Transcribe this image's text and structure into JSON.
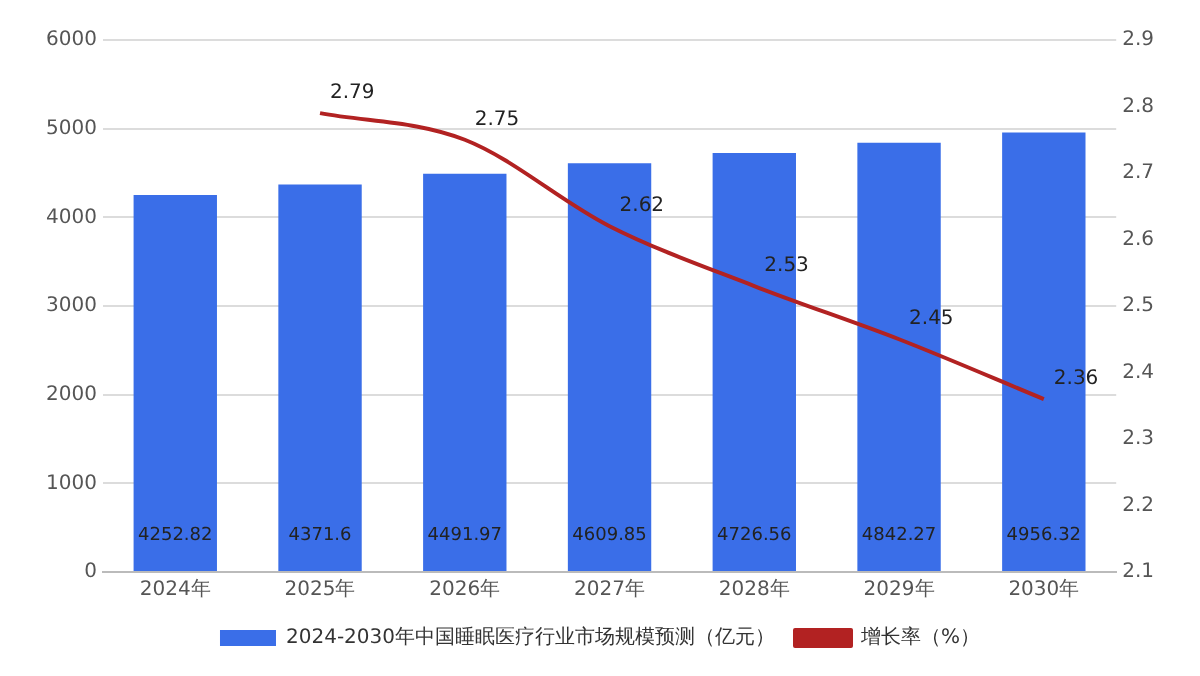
{
  "chart_data": {
    "type": "bar",
    "categories": [
      "2024年",
      "2025年",
      "2026年",
      "2027年",
      "2028年",
      "2029年",
      "2030年"
    ],
    "series": [
      {
        "name": "2024-2030年中国睡眠医疗行业市场规模预测（亿元）",
        "color": "#3a6ee8",
        "values": [
          4252.82,
          4371.6,
          4491.97,
          4609.85,
          4726.56,
          4842.27,
          4956.32
        ]
      },
      {
        "type": "line",
        "name": "增长率（%）",
        "color": "#b22222",
        "axis": "y2",
        "values": [
          null,
          2.79,
          2.75,
          2.62,
          2.53,
          2.45,
          2.36
        ]
      }
    ],
    "ylim": [
      0,
      6000
    ],
    "yticks": [
      0,
      1000,
      2000,
      3000,
      4000,
      5000,
      6000
    ],
    "y2lim": [
      2.1,
      2.9
    ],
    "y2ticks": [
      2.1,
      2.2,
      2.3,
      2.4,
      2.5,
      2.6,
      2.7,
      2.8,
      2.9
    ],
    "grid": "y",
    "legend": "bottom",
    "data_labels": true,
    "marker": "none"
  }
}
